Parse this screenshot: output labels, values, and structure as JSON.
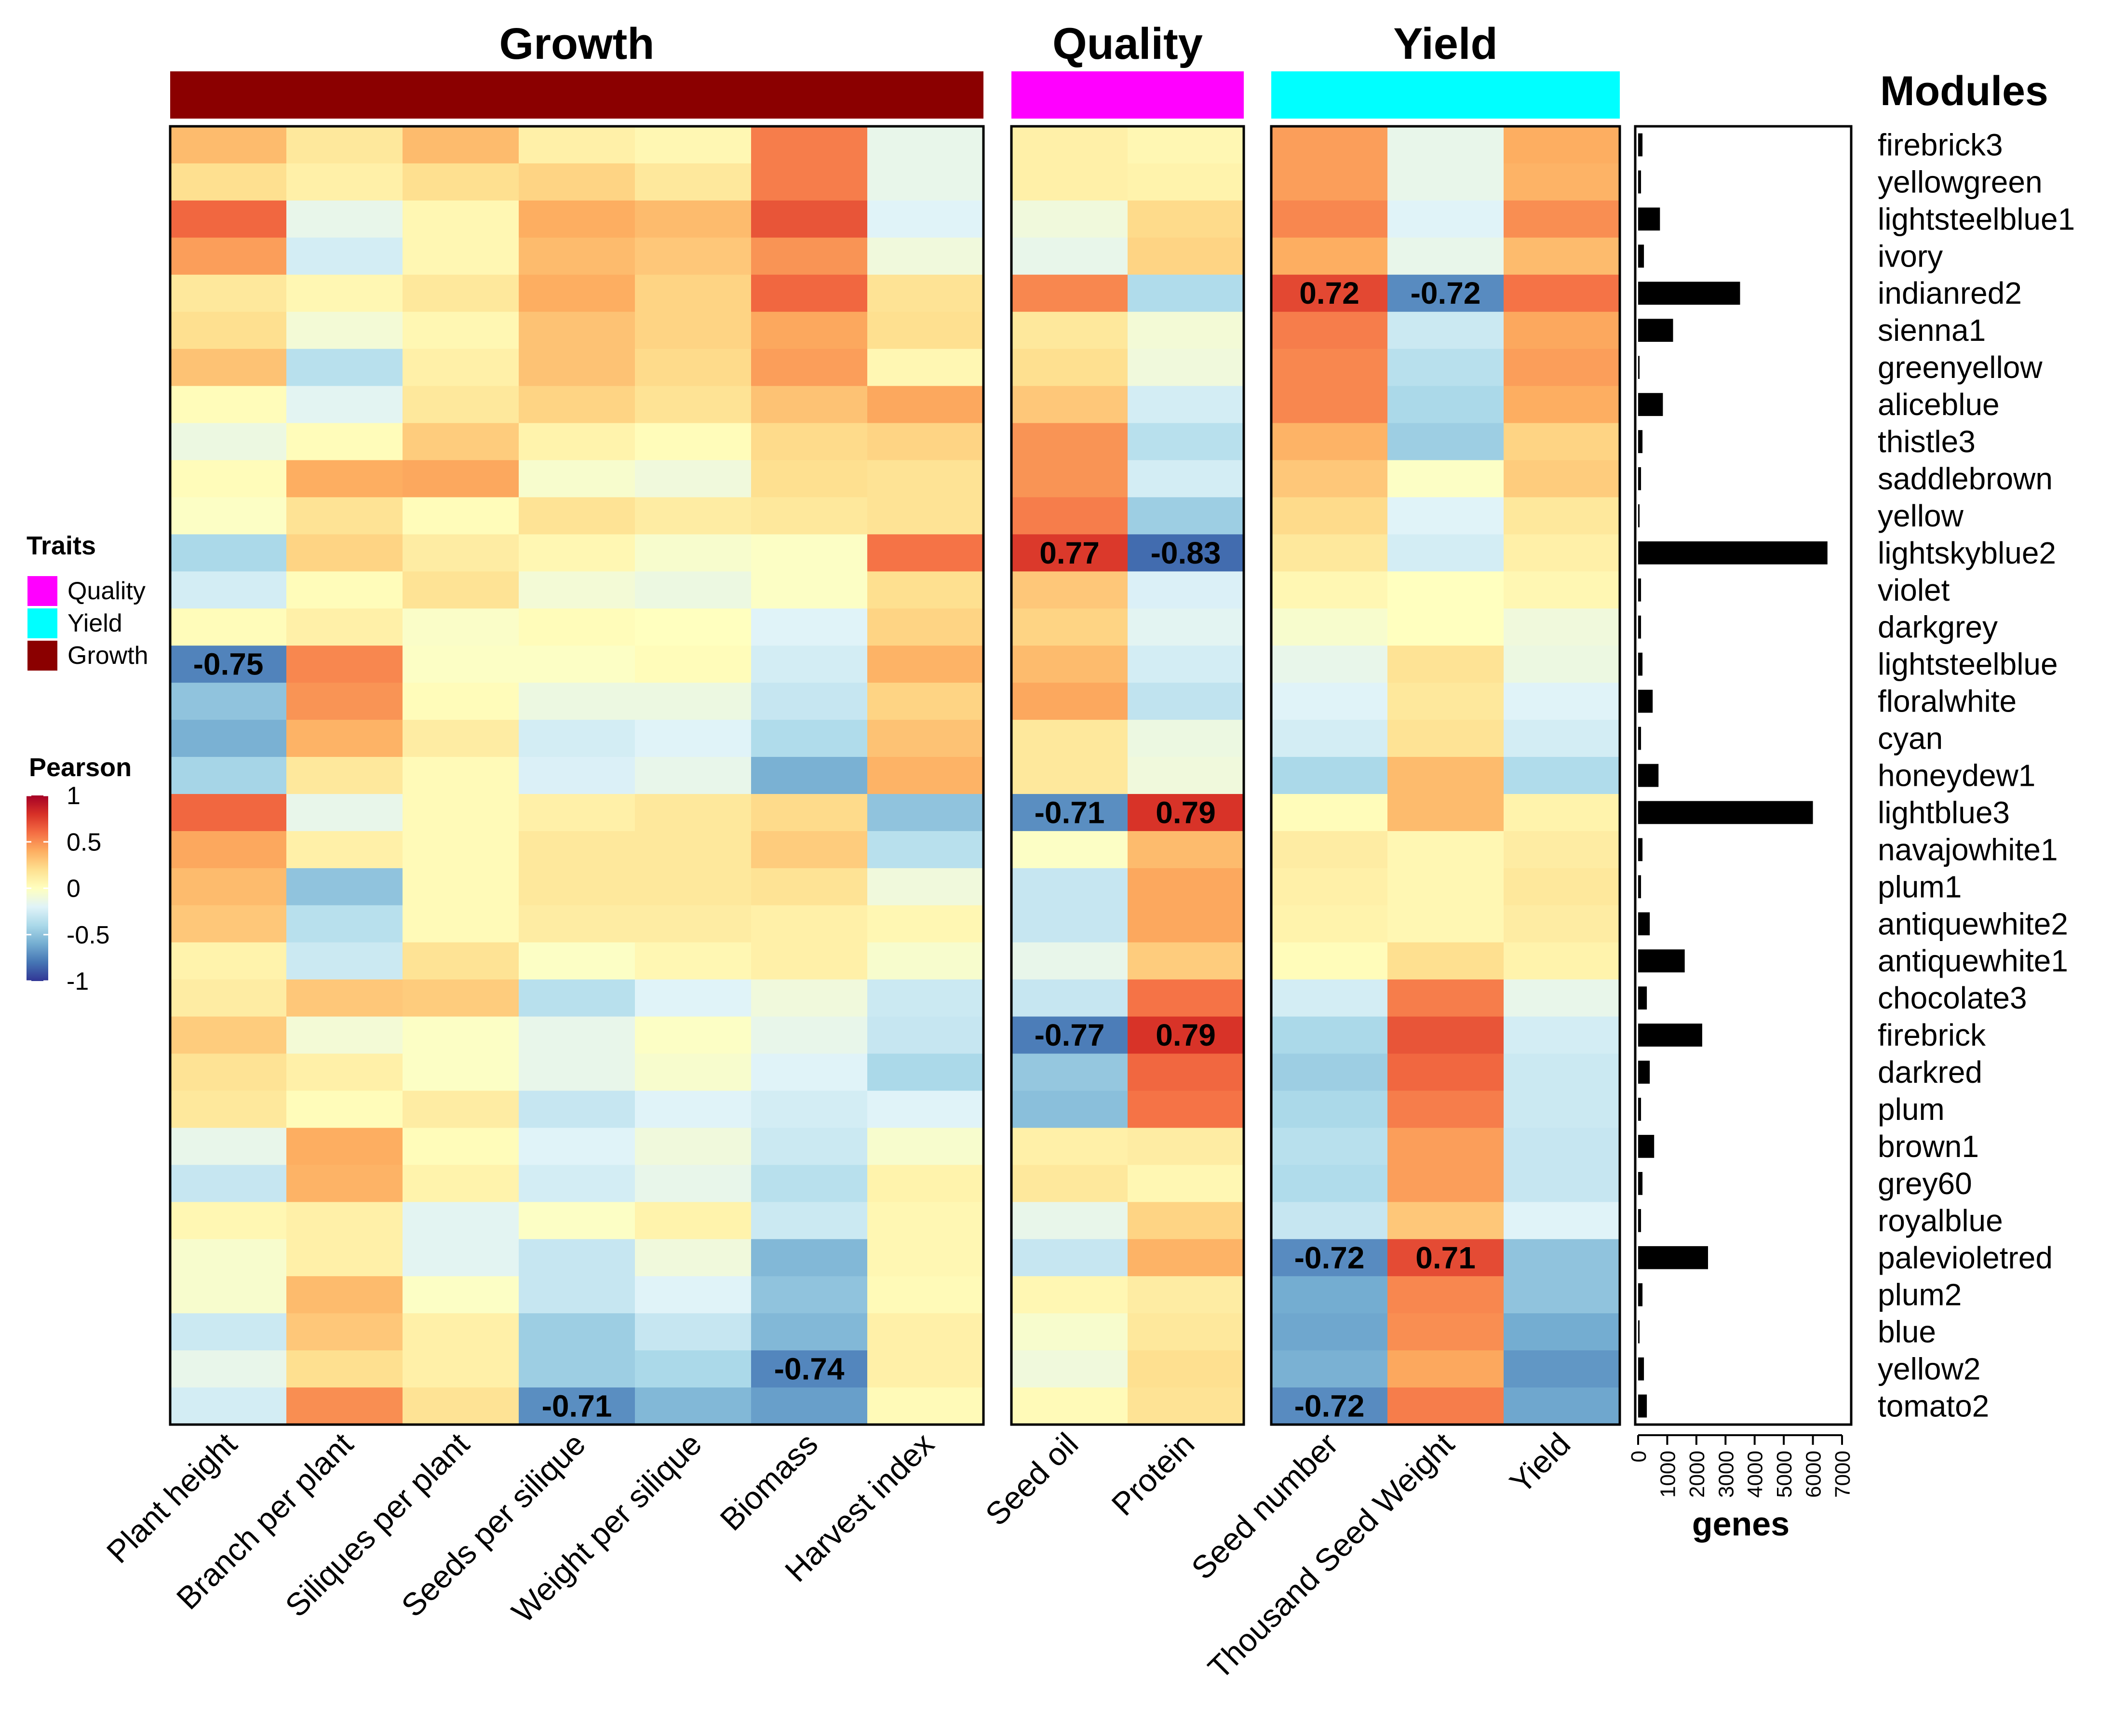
{
  "chart_data": {
    "type": "heatmap",
    "groups": [
      {
        "title": "Growth",
        "color": "#8B0000",
        "columns": [
          "Plant height",
          "Branch per plant",
          "Siliques per plant",
          "Seeds per silique",
          "Weight per silique",
          "Biomass",
          "Harvest index"
        ]
      },
      {
        "title": "Quality",
        "color": "#FF00FF",
        "columns": [
          "Seed oil",
          "Protein"
        ]
      },
      {
        "title": "Yield",
        "color": "#00FFFF",
        "columns": [
          "Seed number",
          "Thousand Seed Weight",
          "Yield"
        ]
      }
    ],
    "modules_title": "Modules",
    "modules": [
      "firebrick3",
      "yellowgreen",
      "lightsteelblue1",
      "ivory",
      "indianred2",
      "sienna1",
      "greenyellow",
      "aliceblue",
      "thistle3",
      "saddlebrown",
      "yellow",
      "lightskyblue2",
      "violet",
      "darkgrey",
      "lightsteelblue",
      "floralwhite",
      "cyan",
      "honeydew1",
      "lightblue3",
      "navajowhite1",
      "plum1",
      "antiquewhite2",
      "antiquewhite1",
      "chocolate3",
      "firebrick",
      "darkred",
      "plum",
      "brown1",
      "grey60",
      "royalblue",
      "palevioletred",
      "plum2",
      "blue",
      "yellow2",
      "tomato2"
    ],
    "correlation_matrix": [
      [
        0.35,
        0.15,
        0.35,
        0.1,
        0.05,
        0.55,
        -0.15,
        0.1,
        0.05,
        0.45,
        -0.15,
        0.4
      ],
      [
        0.2,
        0.1,
        0.2,
        0.25,
        0.15,
        0.55,
        -0.15,
        0.1,
        0.08,
        0.45,
        -0.15,
        0.38
      ],
      [
        0.62,
        -0.15,
        0.05,
        0.4,
        0.35,
        0.68,
        -0.2,
        -0.1,
        0.22,
        0.52,
        -0.2,
        0.5
      ],
      [
        0.45,
        -0.25,
        0.05,
        0.35,
        0.3,
        0.48,
        -0.1,
        -0.15,
        0.25,
        0.4,
        -0.15,
        0.35
      ],
      [
        0.15,
        0.05,
        0.15,
        0.4,
        0.25,
        0.62,
        0.18,
        0.52,
        -0.38,
        0.72,
        -0.72,
        0.58
      ],
      [
        0.2,
        -0.08,
        0.05,
        0.32,
        0.25,
        0.42,
        0.2,
        0.15,
        -0.08,
        0.55,
        -0.28,
        0.42
      ],
      [
        0.32,
        -0.35,
        0.1,
        0.32,
        0.22,
        0.45,
        0.05,
        0.2,
        -0.1,
        0.52,
        -0.35,
        0.45
      ],
      [
        0.02,
        -0.18,
        0.15,
        0.25,
        0.18,
        0.32,
        0.42,
        0.3,
        -0.25,
        0.52,
        -0.4,
        0.4
      ],
      [
        -0.12,
        0.02,
        0.28,
        0.08,
        0.02,
        0.22,
        0.25,
        0.48,
        -0.35,
        0.38,
        -0.45,
        0.25
      ],
      [
        0.02,
        0.4,
        0.42,
        -0.05,
        -0.1,
        0.2,
        0.18,
        0.48,
        -0.25,
        0.3,
        -0.02,
        0.28
      ],
      [
        -0.02,
        0.18,
        0.02,
        0.18,
        0.12,
        0.15,
        0.18,
        0.55,
        -0.45,
        0.22,
        -0.2,
        0.15
      ],
      [
        -0.4,
        0.25,
        0.12,
        0.05,
        -0.05,
        -0.02,
        0.58,
        0.77,
        -0.83,
        0.15,
        -0.25,
        0.1
      ],
      [
        -0.25,
        0.02,
        0.18,
        -0.08,
        -0.12,
        -0.02,
        0.2,
        0.3,
        -0.22,
        0.05,
        0.0,
        0.05
      ],
      [
        0.02,
        0.1,
        -0.03,
        0.02,
        0.0,
        -0.2,
        0.25,
        0.25,
        -0.18,
        -0.05,
        0.0,
        -0.1
      ],
      [
        -0.75,
        0.52,
        -0.02,
        -0.02,
        0.02,
        -0.25,
        0.38,
        0.35,
        -0.25,
        -0.15,
        0.18,
        -0.12
      ],
      [
        -0.5,
        0.48,
        0.02,
        -0.12,
        -0.12,
        -0.3,
        0.25,
        0.42,
        -0.32,
        -0.2,
        0.15,
        -0.2
      ],
      [
        -0.58,
        0.38,
        0.12,
        -0.25,
        -0.2,
        -0.38,
        0.32,
        0.15,
        -0.12,
        -0.25,
        0.18,
        -0.25
      ],
      [
        -0.42,
        0.15,
        0.03,
        -0.22,
        -0.15,
        -0.58,
        0.38,
        0.15,
        -0.1,
        -0.4,
        0.35,
        -0.38
      ],
      [
        0.62,
        -0.15,
        0.03,
        0.1,
        0.15,
        0.22,
        -0.5,
        -0.71,
        0.79,
        0.02,
        0.35,
        0.08
      ],
      [
        0.42,
        0.1,
        0.03,
        0.15,
        0.15,
        0.28,
        -0.35,
        -0.02,
        0.35,
        0.12,
        0.05,
        0.12
      ],
      [
        0.35,
        -0.5,
        0.03,
        0.15,
        0.15,
        0.18,
        -0.1,
        -0.3,
        0.42,
        0.1,
        0.05,
        0.15
      ],
      [
        0.3,
        -0.35,
        0.03,
        0.12,
        0.12,
        0.1,
        0.05,
        -0.3,
        0.42,
        0.08,
        0.05,
        0.12
      ],
      [
        0.08,
        -0.28,
        0.18,
        -0.02,
        0.05,
        0.1,
        -0.05,
        -0.15,
        0.28,
        0.02,
        0.2,
        0.08
      ],
      [
        0.12,
        0.3,
        0.28,
        -0.35,
        -0.2,
        -0.1,
        -0.28,
        -0.3,
        0.58,
        -0.25,
        0.55,
        -0.15
      ],
      [
        0.28,
        -0.08,
        -0.02,
        -0.15,
        -0.02,
        -0.15,
        -0.3,
        -0.77,
        0.79,
        -0.4,
        0.68,
        -0.25
      ],
      [
        0.18,
        0.1,
        -0.02,
        -0.15,
        -0.05,
        -0.2,
        -0.4,
        -0.48,
        0.62,
        -0.45,
        0.62,
        -0.28
      ],
      [
        0.15,
        0.02,
        0.12,
        -0.3,
        -0.2,
        -0.25,
        -0.2,
        -0.52,
        0.58,
        -0.4,
        0.55,
        -0.28
      ],
      [
        -0.15,
        0.4,
        0.02,
        -0.2,
        -0.1,
        -0.28,
        -0.05,
        0.1,
        0.12,
        -0.35,
        0.45,
        -0.3
      ],
      [
        -0.3,
        0.38,
        0.08,
        -0.25,
        -0.15,
        -0.35,
        0.08,
        0.15,
        0.05,
        -0.38,
        0.45,
        -0.3
      ],
      [
        0.05,
        0.1,
        -0.18,
        -0.02,
        0.08,
        -0.28,
        0.05,
        -0.15,
        0.25,
        -0.3,
        0.3,
        -0.2
      ],
      [
        -0.05,
        0.1,
        -0.18,
        -0.3,
        -0.1,
        -0.55,
        0.05,
        -0.3,
        0.38,
        -0.72,
        0.71,
        -0.5
      ],
      [
        -0.05,
        0.35,
        -0.02,
        -0.3,
        -0.2,
        -0.5,
        0.03,
        0.05,
        0.12,
        -0.6,
        0.52,
        -0.5
      ],
      [
        -0.28,
        0.3,
        0.1,
        -0.45,
        -0.3,
        -0.55,
        0.1,
        -0.05,
        0.15,
        -0.62,
        0.5,
        -0.6
      ],
      [
        -0.15,
        0.2,
        0.1,
        -0.45,
        -0.4,
        -0.74,
        0.1,
        -0.1,
        0.2,
        -0.58,
        0.42,
        -0.68
      ],
      [
        -0.25,
        0.5,
        0.18,
        -0.71,
        -0.55,
        -0.65,
        0.03,
        0.03,
        0.18,
        -0.72,
        0.55,
        -0.62
      ]
    ],
    "annotations": [
      {
        "module": "indianred2",
        "trait": "Seed number",
        "label": "0.72"
      },
      {
        "module": "indianred2",
        "trait": "Thousand Seed Weight",
        "label": "-0.72"
      },
      {
        "module": "lightskyblue2",
        "trait": "Seed oil",
        "label": "0.77"
      },
      {
        "module": "lightskyblue2",
        "trait": "Protein",
        "label": "-0.83"
      },
      {
        "module": "lightsteelblue",
        "trait": "Plant height",
        "label": "-0.75"
      },
      {
        "module": "lightblue3",
        "trait": "Seed oil",
        "label": "-0.71"
      },
      {
        "module": "lightblue3",
        "trait": "Protein",
        "label": "0.79"
      },
      {
        "module": "firebrick",
        "trait": "Seed oil",
        "label": "-0.77"
      },
      {
        "module": "firebrick",
        "trait": "Protein",
        "label": "0.79"
      },
      {
        "module": "palevioletred",
        "trait": "Seed number",
        "label": "-0.72"
      },
      {
        "module": "palevioletred",
        "trait": "Thousand Seed Weight",
        "label": "0.71"
      },
      {
        "module": "yellow2",
        "trait": "Biomass",
        "label": "-0.74"
      },
      {
        "module": "tomato2",
        "trait": "Seeds per silique",
        "label": "-0.71"
      },
      {
        "module": "tomato2",
        "trait": "Seed number",
        "label": "-0.72"
      }
    ],
    "gene_counts": [
      150,
      100,
      750,
      200,
      3500,
      1200,
      50,
      850,
      150,
      100,
      50,
      6500,
      100,
      100,
      150,
      500,
      100,
      700,
      6000,
      150,
      100,
      400,
      1600,
      300,
      2200,
      400,
      100,
      550,
      150,
      100,
      2400,
      150,
      50,
      200,
      300
    ],
    "bar_axis": {
      "title": "genes",
      "ticks": [
        0,
        1000,
        2000,
        3000,
        4000,
        5000,
        6000,
        7000
      ],
      "xlim": [
        0,
        7000
      ]
    },
    "legend_traits": {
      "title": "Traits",
      "items": [
        {
          "label": "Quality",
          "color": "#FF00FF"
        },
        {
          "label": "Yield",
          "color": "#00FFFF"
        },
        {
          "label": "Growth",
          "color": "#8B0000"
        }
      ]
    },
    "legend_colorbar": {
      "title": "Pearson",
      "ticks": [
        "1",
        "0.5",
        "0",
        "-0.5",
        "-1"
      ],
      "range": [
        -1,
        1
      ]
    }
  }
}
